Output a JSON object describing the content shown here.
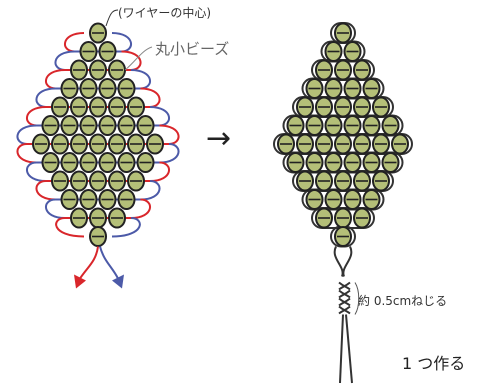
{
  "labels": {
    "wire_center": "(ワイヤーの中心)",
    "beads": "丸小ビーズ",
    "twist": "約 0.5cmねじる",
    "make_one": "1 つ作る"
  },
  "arrow": "→",
  "bead_rows": [
    1,
    2,
    3,
    4,
    5,
    6,
    7,
    6,
    5,
    4,
    3,
    1
  ],
  "colors": {
    "bead_fill": "#b4bf78",
    "bead_stroke": "#222222",
    "wire_red": "#d9262b",
    "wire_blue": "#4c5aa8",
    "wire_dark": "#333333"
  }
}
